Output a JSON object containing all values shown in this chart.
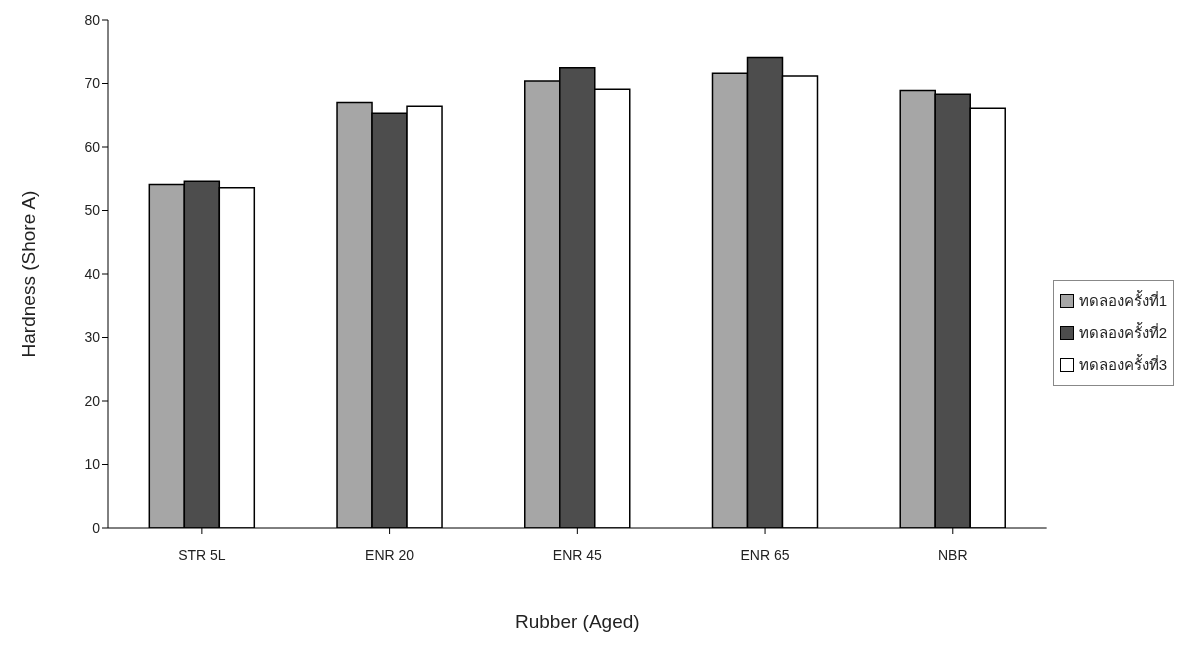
{
  "chart_data": {
    "type": "bar",
    "xlabel": "Rubber (Aged)",
    "ylabel": "Hardness (Shore A)",
    "categories": [
      "STR 5L",
      "ENR 20",
      "ENR 45",
      "ENR 65",
      "NBR"
    ],
    "series": [
      {
        "name": "ทดลองครั้งที่1",
        "color": "#a6a6a6",
        "values": [
          54.1,
          67.0,
          70.4,
          71.6,
          68.9
        ]
      },
      {
        "name": "ทดลองครั้งที่2",
        "color": "#4d4d4d",
        "values": [
          54.6,
          65.3,
          72.5,
          74.1,
          68.3
        ]
      },
      {
        "name": "ทดลองครั้งที่3",
        "color": "#ffffff",
        "values": [
          53.6,
          66.4,
          69.1,
          71.2,
          66.1
        ]
      }
    ],
    "ylim": [
      0,
      80
    ],
    "yticks": [
      0,
      10,
      20,
      30,
      40,
      50,
      60,
      70,
      80
    ],
    "grid": false,
    "legend": "right"
  }
}
